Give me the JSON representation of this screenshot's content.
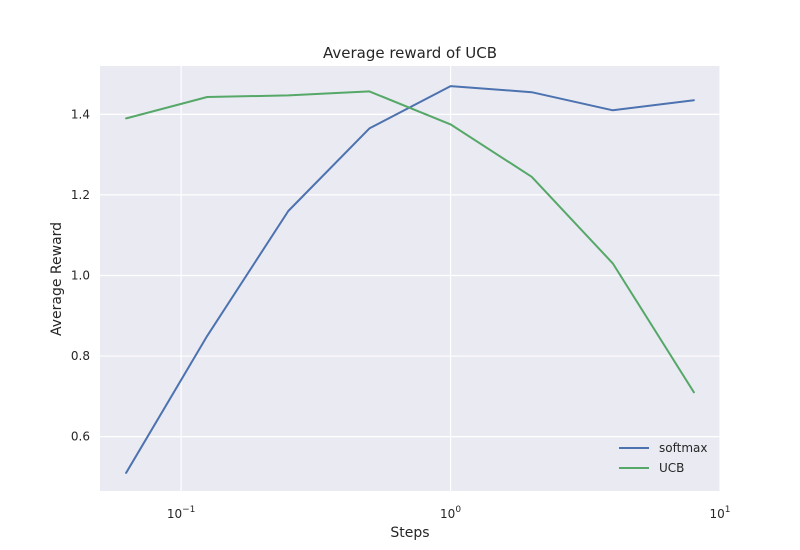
{
  "chart_data": {
    "type": "line",
    "title": "Average reward of UCB",
    "xlabel": "Steps",
    "ylabel": "Average Reward",
    "xscale": "log",
    "xlim": [
      0.05,
      10
    ],
    "ylim": [
      0.465,
      1.52
    ],
    "grid": true,
    "legend_position": "lower-right",
    "x": [
      0.0625,
      0.125,
      0.25,
      0.5,
      1,
      2,
      4,
      8
    ],
    "x_ticks": [
      {
        "value": 0.1,
        "base": "10",
        "exp": "−1"
      },
      {
        "value": 1,
        "base": "10",
        "exp": "0"
      },
      {
        "value": 10,
        "base": "10",
        "exp": "1"
      }
    ],
    "y_ticks": [
      {
        "value": 0.6,
        "label": "0.6"
      },
      {
        "value": 0.8,
        "label": "0.8"
      },
      {
        "value": 1.0,
        "label": "1.0"
      },
      {
        "value": 1.2,
        "label": "1.2"
      },
      {
        "value": 1.4,
        "label": "1.4"
      }
    ],
    "series": [
      {
        "name": "softmax",
        "color": "#4c72b0",
        "values": [
          0.51,
          0.85,
          1.16,
          1.365,
          1.47,
          1.455,
          1.41,
          1.435
        ]
      },
      {
        "name": "UCB",
        "color": "#55a868",
        "values": [
          1.39,
          1.443,
          1.447,
          1.457,
          1.375,
          1.245,
          1.03,
          0.71
        ]
      }
    ]
  }
}
